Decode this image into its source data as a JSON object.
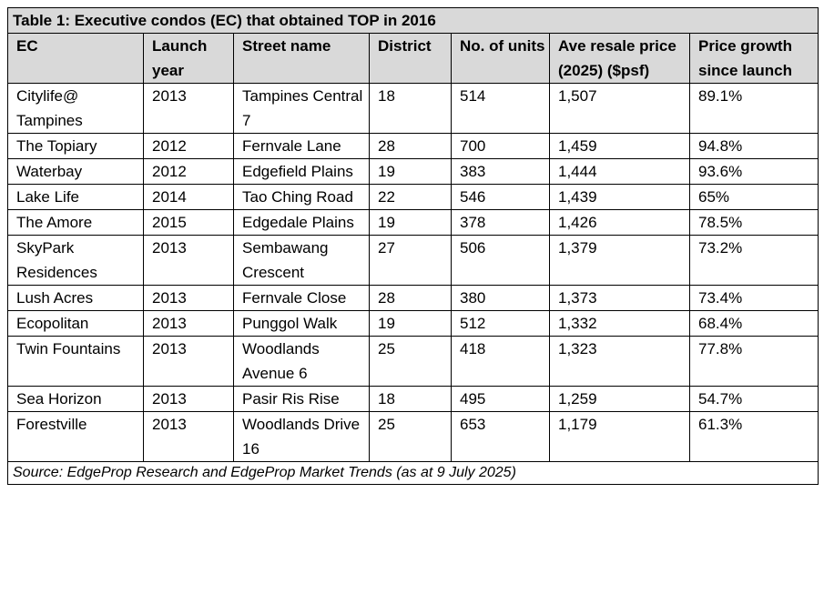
{
  "table": {
    "title": "Table 1: Executive condos (EC) that obtained TOP in 2016",
    "header": [
      "EC",
      "Launch year",
      "Street name",
      "District",
      "No. of units",
      "Ave resale price (2025) ($psf)",
      "Price growth since launch"
    ],
    "rows": [
      [
        "Citylife@ Tampines",
        "2013",
        "Tampines Central 7",
        "18",
        "514",
        "1,507",
        "89.1%"
      ],
      [
        "The Topiary",
        "2012",
        "Fernvale Lane",
        "28",
        "700",
        "1,459",
        "94.8%"
      ],
      [
        "Waterbay",
        "2012",
        "Edgefield Plains",
        "19",
        "383",
        "1,444",
        "93.6%"
      ],
      [
        "Lake Life",
        "2014",
        "Tao Ching Road",
        "22",
        "546",
        "1,439",
        "65%"
      ],
      [
        "The Amore",
        "2015",
        "Edgedale Plains",
        "19",
        "378",
        "1,426",
        "78.5%"
      ],
      [
        "SkyPark Residences",
        "2013",
        "Sembawang Crescent",
        "27",
        "506",
        "1,379",
        "73.2%"
      ],
      [
        "Lush Acres",
        "2013",
        "Fernvale Close",
        "28",
        "380",
        "1,373",
        "73.4%"
      ],
      [
        "Ecopolitan",
        "2013",
        "Punggol Walk",
        "19",
        "512",
        "1,332",
        "68.4%"
      ],
      [
        "Twin Fountains",
        "2013",
        "Woodlands Avenue 6",
        "25",
        "418",
        "1,323",
        "77.8%"
      ],
      [
        "Sea Horizon",
        "2013",
        "Pasir Ris Rise",
        "18",
        "495",
        "1,259",
        "54.7%"
      ],
      [
        "Forestville",
        "2013",
        "Woodlands Drive 16",
        "25",
        "653",
        "1,179",
        "61.3%"
      ]
    ],
    "source": "Source: EdgeProp Research and EdgeProp Market Trends (as at 9 July 2025)"
  }
}
